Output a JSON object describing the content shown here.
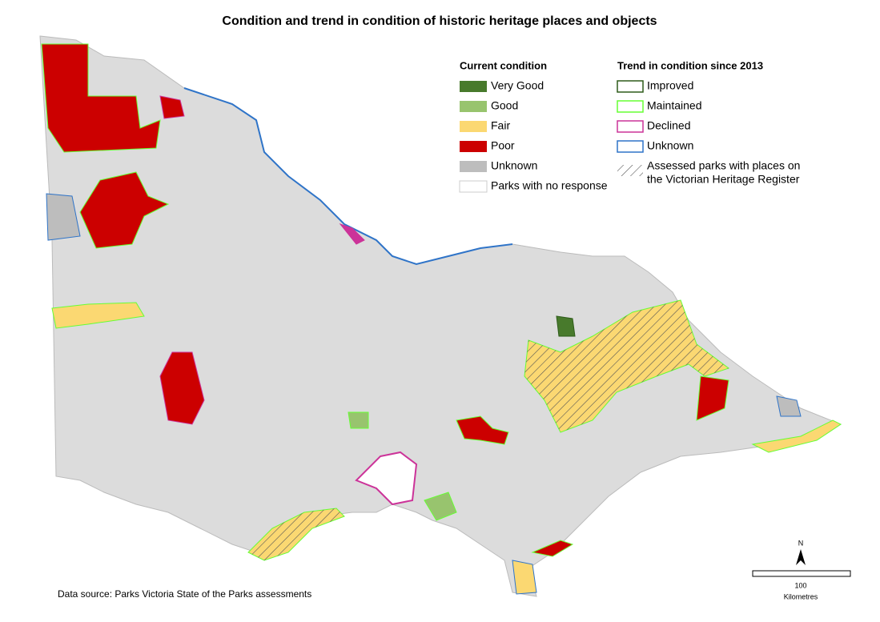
{
  "title": "Condition and trend in condition of historic heritage places and objects",
  "legend": {
    "current": {
      "heading": "Current condition",
      "items": [
        {
          "label": "Very Good",
          "fill": "#487a2c"
        },
        {
          "label": "Good",
          "fill": "#98c46e"
        },
        {
          "label": "Fair",
          "fill": "#fbd872"
        },
        {
          "label": "Poor",
          "fill": "#cc0000"
        },
        {
          "label": "Unknown",
          "fill": "#bdbdbd"
        },
        {
          "label": "Parks with no response",
          "fill": "#ffffff"
        }
      ]
    },
    "trend": {
      "heading": "Trend in condition since 2013",
      "items": [
        {
          "label": "Improved",
          "stroke": "#2e5c1a"
        },
        {
          "label": "Maintained",
          "stroke": "#66ff33"
        },
        {
          "label": "Declined",
          "stroke": "#cc3399"
        },
        {
          "label": "Unknown",
          "stroke": "#2f74c8"
        }
      ],
      "hatch_label": [
        "Assessed parks with places on",
        "the Victorian Heritage Register"
      ]
    }
  },
  "north": "N",
  "scale": {
    "value": 100,
    "label": "Kilometres"
  },
  "source": "Data source: Parks Victoria State of the Parks assessments"
}
